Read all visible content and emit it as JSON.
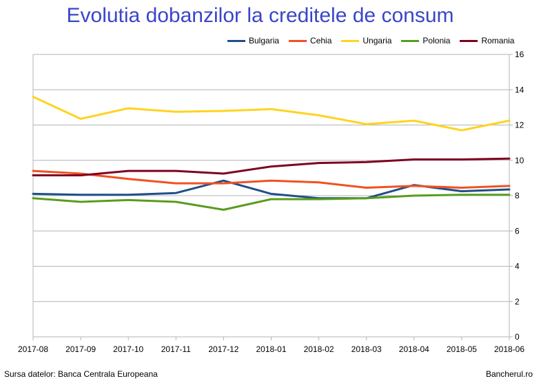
{
  "chart_data": {
    "type": "line",
    "title": "Evolutia dobanzilor la creditele de consum",
    "x": [
      "2017-08",
      "2017-09",
      "2017-10",
      "2017-11",
      "2017-12",
      "2018-01",
      "2018-02",
      "2018-03",
      "2018-04",
      "2018-05",
      "2018-06"
    ],
    "ylim": [
      0,
      16
    ],
    "yticks": [
      0,
      2,
      4,
      6,
      8,
      10,
      12,
      14,
      16
    ],
    "grid": true,
    "legend_position": "top",
    "series": [
      {
        "name": "Bulgaria",
        "color": "#1f4e8c",
        "values": [
          8.1,
          8.05,
          8.05,
          8.15,
          8.85,
          8.1,
          7.85,
          7.85,
          8.6,
          8.25,
          8.35
        ]
      },
      {
        "name": "Cehia",
        "color": "#f25022",
        "values": [
          9.4,
          9.25,
          8.95,
          8.7,
          8.7,
          8.85,
          8.75,
          8.45,
          8.55,
          8.45,
          8.55
        ]
      },
      {
        "name": "Ungaria",
        "color": "#ffd320",
        "values": [
          13.6,
          12.35,
          12.95,
          12.75,
          12.8,
          12.9,
          12.55,
          12.05,
          12.25,
          11.7,
          12.25
        ]
      },
      {
        "name": "Polonia",
        "color": "#579d1c",
        "values": [
          7.85,
          7.65,
          7.75,
          7.65,
          7.2,
          7.8,
          7.8,
          7.85,
          8.0,
          8.05,
          8.05
        ]
      },
      {
        "name": "Romania",
        "color": "#7e0021",
        "values": [
          9.15,
          9.15,
          9.4,
          9.4,
          9.25,
          9.65,
          9.85,
          9.9,
          10.05,
          10.05,
          10.1
        ]
      }
    ]
  },
  "footer": {
    "source": "Sursa datelor: Banca Centrala Europeana",
    "brand": "Bancherul.ro"
  }
}
